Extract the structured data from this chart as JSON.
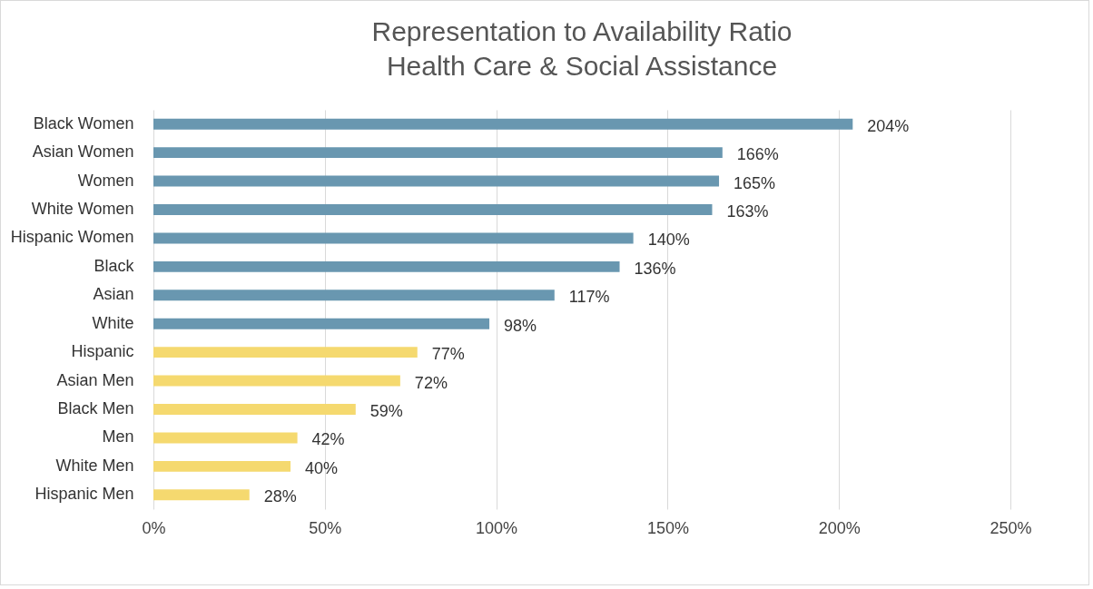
{
  "chart_data": {
    "type": "bar",
    "orientation": "horizontal",
    "title": "Representation to Availability Ratio",
    "subtitle": "Health Care & Social Assistance",
    "categories": [
      "Black Women",
      "Asian Women",
      "Women",
      "White Women",
      "Hispanic Women",
      "Black",
      "Asian",
      "White",
      "Hispanic",
      "Asian Men",
      "Black Men",
      "Men",
      "White Men",
      "Hispanic Men"
    ],
    "values": [
      204,
      166,
      165,
      163,
      140,
      136,
      117,
      98,
      77,
      72,
      59,
      42,
      40,
      28
    ],
    "value_labels": [
      "204%",
      "166%",
      "165%",
      "163%",
      "140%",
      "136%",
      "117%",
      "98%",
      "77%",
      "72%",
      "59%",
      "42%",
      "40%",
      "28%"
    ],
    "colors": [
      "#6997b0",
      "#6997b0",
      "#6997b0",
      "#6997b0",
      "#6997b0",
      "#6997b0",
      "#6997b0",
      "#6997b0",
      "#f5d96f",
      "#f5d96f",
      "#f5d96f",
      "#f5d96f",
      "#f5d96f",
      "#f5d96f"
    ],
    "xlim": [
      0,
      250
    ],
    "xticks": [
      {
        "value": 0,
        "label": "0%"
      },
      {
        "value": 50,
        "label": "50%"
      },
      {
        "value": 100,
        "label": "100%"
      },
      {
        "value": 150,
        "label": "150%"
      },
      {
        "value": 200,
        "label": "200%"
      },
      {
        "value": 250,
        "label": "250%"
      }
    ],
    "grid": "x"
  }
}
